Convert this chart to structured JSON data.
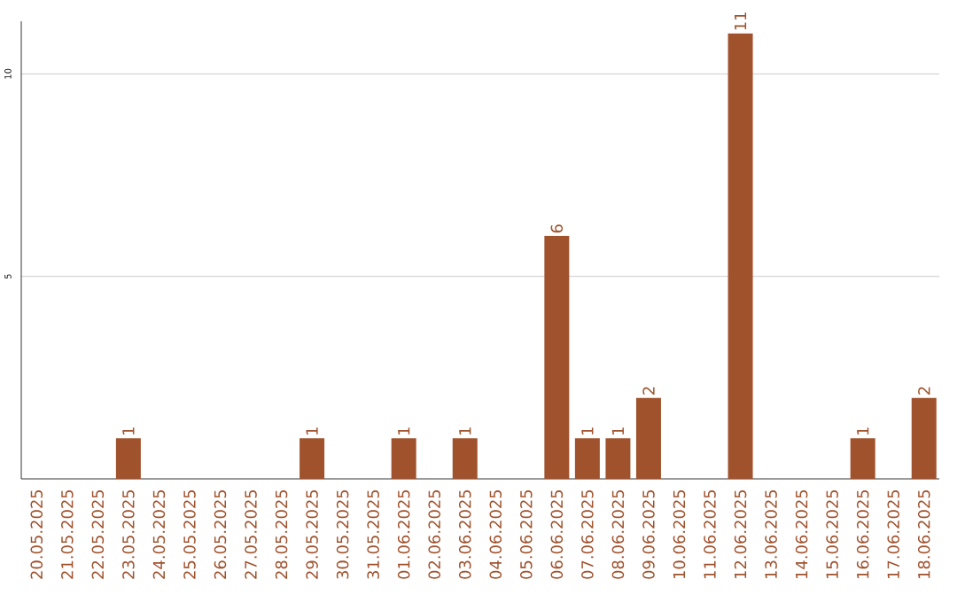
{
  "chart_data": {
    "type": "bar",
    "categories": [
      "20.05.2025",
      "21.05.2025",
      "22.05.2025",
      "23.05.2025",
      "24.05.2025",
      "25.05.2025",
      "26.05.2025",
      "27.05.2025",
      "28.05.2025",
      "29.05.2025",
      "30.05.2025",
      "31.05.2025",
      "01.06.2025",
      "02.06.2025",
      "03.06.2025",
      "04.06.2025",
      "05.06.2025",
      "06.06.2025",
      "07.06.2025",
      "08.06.2025",
      "09.06.2025",
      "10.06.2025",
      "11.06.2025",
      "12.06.2025",
      "13.06.2025",
      "14.06.2025",
      "15.06.2025",
      "16.06.2025",
      "17.06.2025",
      "18.06.2025"
    ],
    "values": [
      0,
      0,
      0,
      1,
      0,
      0,
      0,
      0,
      0,
      1,
      0,
      0,
      1,
      0,
      1,
      0,
      0,
      6,
      1,
      1,
      2,
      0,
      0,
      11,
      0,
      0,
      0,
      1,
      0,
      2
    ],
    "value_labels": [
      null,
      null,
      null,
      "1",
      null,
      null,
      null,
      null,
      null,
      "1",
      null,
      null,
      "1",
      null,
      "1",
      null,
      null,
      "6",
      "1",
      "1",
      "2",
      null,
      null,
      "11",
      null,
      null,
      null,
      "1",
      null,
      "2"
    ],
    "color": "#a0522d",
    "ylim": [
      0,
      11.3
    ],
    "yticks": [
      5,
      10
    ],
    "grid": "y"
  }
}
